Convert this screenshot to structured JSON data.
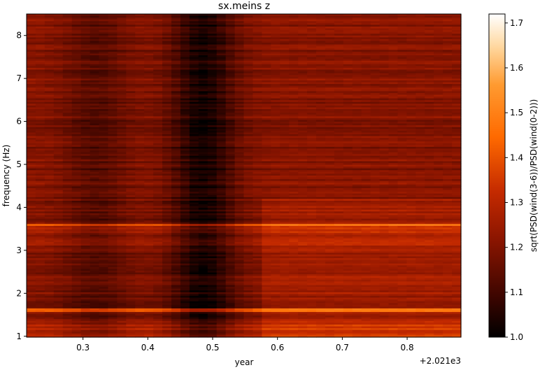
{
  "chart_data": {
    "type": "heatmap",
    "title": "sx.meins z",
    "xlabel": "year",
    "ylabel": "frequency (Hz)",
    "x_offset_label": "+2.021e3",
    "xlim": [
      0.213,
      0.883
    ],
    "ylim": [
      0.98,
      8.5
    ],
    "x_ticks": [
      "0.3",
      "0.4",
      "0.5",
      "0.6",
      "0.7",
      "0.8"
    ],
    "y_ticks": [
      "1",
      "2",
      "3",
      "4",
      "5",
      "6",
      "7",
      "8"
    ],
    "colorbar": {
      "label": "sqrt(PSD(wind(3-6))/PSD(wind(0-2)))",
      "range": [
        1.0,
        1.72
      ],
      "ticks": [
        "1.0",
        "1.1",
        "1.2",
        "1.3",
        "1.4",
        "1.5",
        "1.6",
        "1.7"
      ],
      "colormap": "gist_heat"
    },
    "grid": false
  }
}
